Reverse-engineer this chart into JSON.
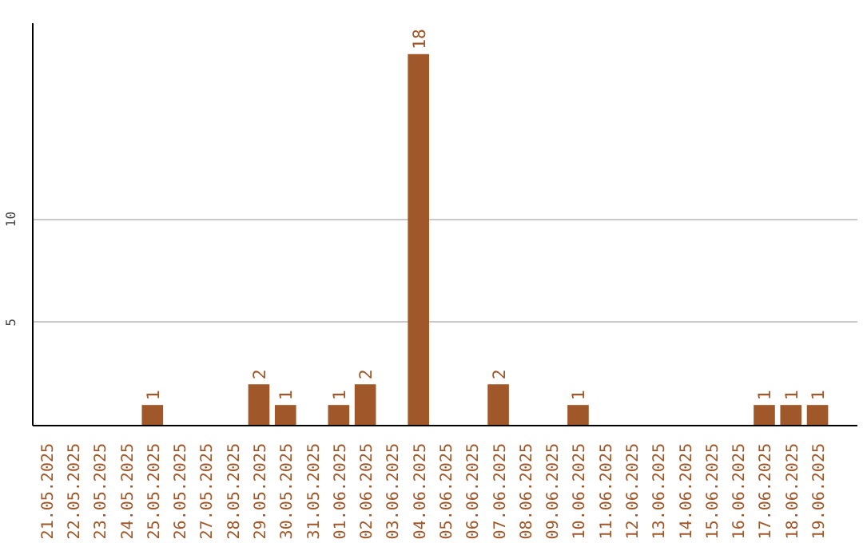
{
  "chart_data": {
    "type": "bar",
    "categories": [
      "21.05.2025",
      "22.05.2025",
      "23.05.2025",
      "24.05.2025",
      "25.05.2025",
      "26.05.2025",
      "27.05.2025",
      "28.05.2025",
      "29.05.2025",
      "30.05.2025",
      "31.05.2025",
      "01.06.2025",
      "02.06.2025",
      "03.06.2025",
      "04.06.2025",
      "05.06.2025",
      "06.06.2025",
      "07.06.2025",
      "08.06.2025",
      "09.06.2025",
      "10.06.2025",
      "11.06.2025",
      "12.06.2025",
      "13.06.2025",
      "14.06.2025",
      "15.06.2025",
      "16.06.2025",
      "17.06.2025",
      "18.06.2025",
      "19.06.2025"
    ],
    "values": [
      0,
      0,
      0,
      0,
      1,
      0,
      0,
      0,
      2,
      1,
      0,
      1,
      2,
      0,
      18,
      0,
      0,
      2,
      0,
      0,
      1,
      0,
      0,
      0,
      0,
      0,
      0,
      1,
      1,
      1
    ],
    "value_labels": [
      null,
      null,
      null,
      null,
      "1",
      null,
      null,
      null,
      "2",
      "1",
      null,
      "1",
      "2",
      null,
      "18",
      null,
      null,
      "2",
      null,
      null,
      "1",
      null,
      null,
      null,
      null,
      null,
      null,
      "1",
      "1",
      "1"
    ],
    "color": "#a0582a",
    "ylim": [
      0,
      19.5
    ],
    "yticks": [
      5,
      10
    ],
    "grid": "y"
  }
}
